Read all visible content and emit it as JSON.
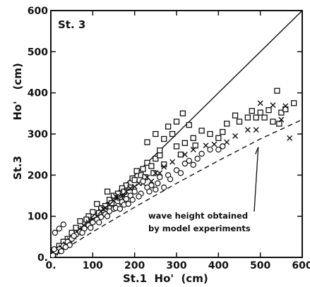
{
  "chart_data": {
    "type": "scatter",
    "title": "",
    "station_label": "St. 3",
    "xlabel": "St.1  Ho'  (cm)",
    "ylabel_station": "St.3",
    "ylabel_var": "Ho'   (cm)",
    "xlim": [
      0,
      600
    ],
    "ylim": [
      0,
      600
    ],
    "x_ticks": [
      0,
      100,
      200,
      300,
      400,
      500,
      600
    ],
    "y_ticks": [
      0,
      100,
      200,
      300,
      400,
      500,
      600
    ],
    "x_tick_labels": [
      "0.",
      "100",
      "200",
      "300",
      "400",
      "500",
      "600"
    ],
    "y_tick_labels": [
      "0.",
      "100",
      "200",
      "300",
      "400",
      "500",
      "600"
    ],
    "grid": false,
    "reference_line": {
      "style": "solid",
      "x": [
        0,
        600
      ],
      "y": [
        0,
        600
      ]
    },
    "model_curve": {
      "style": "dashed",
      "x": [
        0,
        100,
        200,
        300,
        400,
        500,
        600
      ],
      "y": [
        0,
        62,
        122,
        180,
        235,
        288,
        335
      ]
    },
    "annotation": {
      "lines": [
        "wave height obtained",
        "by model experiments"
      ],
      "arrow_target": [
        495,
        268
      ]
    },
    "series": [
      {
        "marker": "square",
        "points": [
          [
            480,
            356
          ],
          [
            500,
            352
          ],
          [
            520,
            358
          ],
          [
            540,
            405
          ],
          [
            550,
            352
          ],
          [
            560,
            360
          ],
          [
            580,
            375
          ],
          [
            470,
            340
          ],
          [
            490,
            340
          ],
          [
            510,
            340
          ],
          [
            530,
            330
          ],
          [
            545,
            325
          ],
          [
            440,
            345
          ],
          [
            420,
            325
          ],
          [
            450,
            330
          ],
          [
            400,
            290
          ],
          [
            410,
            305
          ],
          [
            380,
            300
          ],
          [
            360,
            308
          ],
          [
            340,
            290
          ],
          [
            345,
            272
          ],
          [
            320,
            278
          ],
          [
            300,
            270
          ],
          [
            310,
            250
          ],
          [
            290,
            300
          ],
          [
            260,
            260
          ],
          [
            270,
            288
          ],
          [
            250,
            240
          ],
          [
            230,
            230
          ],
          [
            240,
            222
          ],
          [
            220,
            215
          ],
          [
            260,
            248
          ],
          [
            215,
            200
          ],
          [
            205,
            210
          ],
          [
            300,
            330
          ],
          [
            280,
            318
          ],
          [
            330,
            322
          ],
          [
            315,
            350
          ],
          [
            250,
            300
          ],
          [
            230,
            280
          ],
          [
            180,
            175
          ],
          [
            195,
            192
          ],
          [
            170,
            168
          ],
          [
            160,
            155
          ],
          [
            150,
            150
          ],
          [
            140,
            140
          ],
          [
            135,
            160
          ],
          [
            120,
            120
          ],
          [
            110,
            130
          ],
          [
            100,
            110
          ],
          [
            90,
            100
          ],
          [
            85,
            92
          ],
          [
            70,
            88
          ],
          [
            60,
            72
          ],
          [
            50,
            60
          ],
          [
            40,
            45
          ],
          [
            30,
            38
          ],
          [
            20,
            28
          ],
          [
            15,
            18
          ],
          [
            10,
            12
          ],
          [
            270,
            226
          ],
          [
            245,
            205
          ],
          [
            225,
            195
          ],
          [
            200,
            188
          ],
          [
            190,
            170
          ],
          [
            175,
            160
          ],
          [
            165,
            145
          ],
          [
            145,
            132
          ],
          [
            130,
            125
          ],
          [
            115,
            108
          ]
        ]
      },
      {
        "marker": "x",
        "points": [
          [
            500,
            375
          ],
          [
            530,
            370
          ],
          [
            560,
            368
          ],
          [
            570,
            290
          ],
          [
            550,
            335
          ],
          [
            490,
            310
          ],
          [
            470,
            310
          ],
          [
            440,
            295
          ],
          [
            420,
            280
          ],
          [
            390,
            275
          ],
          [
            370,
            272
          ],
          [
            340,
            262
          ],
          [
            320,
            250
          ],
          [
            290,
            232
          ],
          [
            270,
            220
          ],
          [
            250,
            205
          ],
          [
            230,
            195
          ],
          [
            210,
            180
          ],
          [
            190,
            168
          ],
          [
            180,
            160
          ],
          [
            170,
            150
          ],
          [
            160,
            145
          ],
          [
            150,
            138
          ],
          [
            140,
            128
          ],
          [
            130,
            120
          ],
          [
            120,
            112
          ],
          [
            110,
            100
          ],
          [
            100,
            92
          ],
          [
            90,
            85
          ],
          [
            80,
            76
          ],
          [
            70,
            68
          ],
          [
            60,
            58
          ],
          [
            55,
            50
          ],
          [
            45,
            42
          ],
          [
            35,
            32
          ],
          [
            25,
            24
          ],
          [
            15,
            14
          ],
          [
            8,
            6
          ],
          [
            5,
            10
          ],
          [
            12,
            20
          ],
          [
            260,
            205
          ],
          [
            240,
            185
          ],
          [
            220,
            180
          ],
          [
            200,
            172
          ],
          [
            175,
            150
          ],
          [
            155,
            148
          ],
          [
            125,
            118
          ],
          [
            95,
            90
          ],
          [
            75,
            70
          ],
          [
            65,
            60
          ]
        ]
      },
      {
        "marker": "circle",
        "points": [
          [
            410,
            270
          ],
          [
            400,
            262
          ],
          [
            380,
            262
          ],
          [
            360,
            252
          ],
          [
            350,
            240
          ],
          [
            330,
            235
          ],
          [
            320,
            228
          ],
          [
            300,
            212
          ],
          [
            280,
            200
          ],
          [
            260,
            195
          ],
          [
            240,
            175
          ],
          [
            230,
            170
          ],
          [
            220,
            185
          ],
          [
            200,
            160
          ],
          [
            190,
            150
          ],
          [
            180,
            142
          ],
          [
            170,
            135
          ],
          [
            160,
            125
          ],
          [
            150,
            118
          ],
          [
            140,
            112
          ],
          [
            130,
            105
          ],
          [
            120,
            98
          ],
          [
            110,
            92
          ],
          [
            100,
            85
          ],
          [
            90,
            78
          ],
          [
            80,
            70
          ],
          [
            70,
            62
          ],
          [
            60,
            55
          ],
          [
            50,
            45
          ],
          [
            40,
            38
          ],
          [
            30,
            28
          ],
          [
            20,
            20
          ],
          [
            12,
            15
          ],
          [
            5,
            5
          ],
          [
            8,
            20
          ],
          [
            30,
            80
          ],
          [
            20,
            70
          ],
          [
            10,
            60
          ],
          [
            340,
            225
          ],
          [
            310,
            205
          ],
          [
            285,
            190
          ],
          [
            255,
            180
          ],
          [
            235,
            160
          ],
          [
            215,
            155
          ],
          [
            195,
            140
          ],
          [
            175,
            128
          ],
          [
            155,
            120
          ],
          [
            135,
            100
          ],
          [
            115,
            85
          ],
          [
            95,
            72
          ],
          [
            75,
            60
          ],
          [
            55,
            52
          ],
          [
            45,
            30
          ],
          [
            35,
            25
          ],
          [
            25,
            15
          ],
          [
            270,
            170
          ],
          [
            250,
            165
          ],
          [
            210,
            148
          ],
          [
            185,
            130
          ],
          [
            165,
            118
          ]
        ]
      }
    ]
  }
}
